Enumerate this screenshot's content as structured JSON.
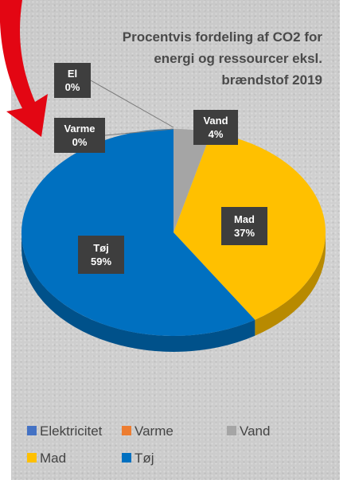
{
  "chart_data": {
    "type": "pie",
    "style": "3d-tilted",
    "title": "Procentvis fordeling af CO2 for energi og ressourcer eksl. brændstof 2019",
    "title_lines": [
      "Procentvis fordeling af CO2 for",
      "energi og ressourcer eksl.",
      "brændstof 2019"
    ],
    "slices": [
      {
        "name": "Elektricitet",
        "value": 0,
        "label_name": "El",
        "label_value": "0%",
        "color": "#4472C4"
      },
      {
        "name": "Varme",
        "value": 0,
        "label_name": "Varme",
        "label_value": "0%",
        "color": "#ED7D31"
      },
      {
        "name": "Vand",
        "value": 4,
        "label_name": "Vand",
        "label_value": "4%",
        "color": "#A5A5A5"
      },
      {
        "name": "Mad",
        "value": 37,
        "label_name": "Mad",
        "label_value": "37%",
        "color": "#FFC000"
      },
      {
        "name": "Tøj",
        "value": 59,
        "label_name": "Tøj",
        "label_value": "59%",
        "color": "#0070C0"
      }
    ],
    "legend_position": "bottom"
  }
}
